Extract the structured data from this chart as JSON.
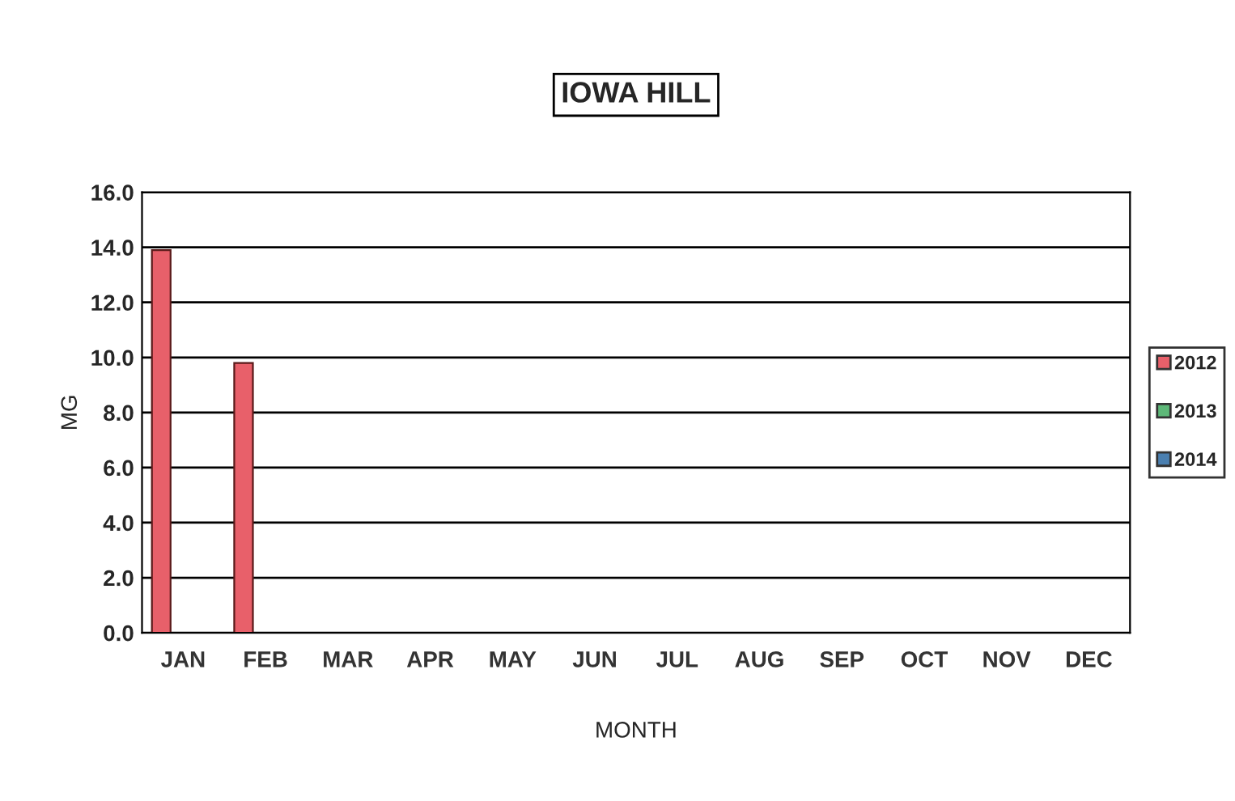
{
  "chart_data": {
    "type": "bar",
    "title": "IOWA HILL",
    "xlabel": "MONTH",
    "ylabel": "MG",
    "categories": [
      "JAN",
      "FEB",
      "MAR",
      "APR",
      "MAY",
      "JUN",
      "JUL",
      "AUG",
      "SEP",
      "OCT",
      "NOV",
      "DEC"
    ],
    "series": [
      {
        "name": "2012",
        "color": "#e8606a",
        "values": [
          13.9,
          9.8,
          null,
          null,
          null,
          null,
          null,
          null,
          null,
          null,
          null,
          null
        ]
      },
      {
        "name": "2013",
        "color": "#5db878",
        "values": [
          null,
          null,
          null,
          null,
          null,
          null,
          null,
          null,
          null,
          null,
          null,
          null
        ]
      },
      {
        "name": "2014",
        "color": "#4a7fb0",
        "values": [
          null,
          null,
          null,
          null,
          null,
          null,
          null,
          null,
          null,
          null,
          null,
          null
        ]
      }
    ],
    "ylim": [
      0,
      16
    ],
    "yticks": [
      {
        "value": 0,
        "label": "0.0"
      },
      {
        "value": 2,
        "label": "2.0"
      },
      {
        "value": 4,
        "label": "4.0"
      },
      {
        "value": 6,
        "label": "6.0"
      },
      {
        "value": 8,
        "label": "8.0"
      },
      {
        "value": 10,
        "label": "10.0"
      },
      {
        "value": 12,
        "label": "12.0"
      },
      {
        "value": 14,
        "label": "14.0"
      },
      {
        "value": 16,
        "label": "16.0"
      }
    ],
    "grid": "y",
    "legend": "right"
  }
}
